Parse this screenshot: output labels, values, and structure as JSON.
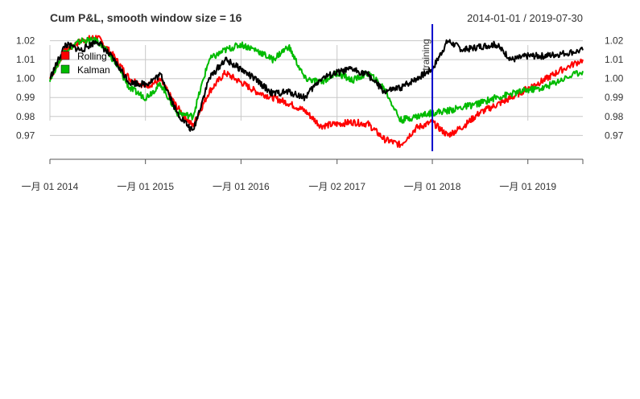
{
  "chart_data": {
    "type": "line",
    "title": "Cum P&L, smooth window size = 16",
    "date_range": "2014-01-01 / 2019-07-30",
    "x_ticks": [
      "一月 01 2014",
      "一月 01 2015",
      "一月 01 2016",
      "一月 02 2017",
      "一月 01 2018",
      "一月 01 2019"
    ],
    "x_tick_dates": [
      "2014-01-01",
      "2015-01-01",
      "2016-01-01",
      "2017-01-02",
      "2018-01-01",
      "2019-01-01"
    ],
    "xlim": [
      "2014-01-01",
      "2019-07-30"
    ],
    "y_ticks": [
      "0.97",
      "0.98",
      "0.99",
      "1.00",
      "1.01",
      "1.02"
    ],
    "y_tick_values": [
      0.97,
      0.98,
      0.99,
      1.0,
      1.01,
      1.02
    ],
    "ylim": [
      0.9625,
      1.0245
    ],
    "grid": true,
    "legend": {
      "position": "top-left",
      "entries": [
        {
          "label": "Rolling",
          "color": "#ff0000"
        },
        {
          "label": "Kalman",
          "color": "#00bb00"
        }
      ]
    },
    "event_line": {
      "date": "2018-01-01",
      "label": "training",
      "color": "#0000cc"
    },
    "series": [
      {
        "name": "Rolling",
        "color": "#ff0000",
        "x": [
          "2014-01-01",
          "2014-03-01",
          "2014-05-01",
          "2014-07-01",
          "2014-09-01",
          "2014-11-01",
          "2015-01-01",
          "2015-03-01",
          "2015-05-01",
          "2015-07-01",
          "2015-09-01",
          "2015-11-01",
          "2016-01-01",
          "2016-03-01",
          "2016-05-01",
          "2016-07-01",
          "2016-09-01",
          "2016-11-01",
          "2017-01-01",
          "2017-03-01",
          "2017-05-01",
          "2017-07-01",
          "2017-09-01",
          "2017-11-01",
          "2018-01-01",
          "2018-03-01",
          "2018-05-01",
          "2018-07-01",
          "2018-09-01",
          "2018-11-01",
          "2019-01-01",
          "2019-03-01",
          "2019-05-01",
          "2019-07-30"
        ],
        "y": [
          1.0,
          1.015,
          1.02,
          1.022,
          1.012,
          1.0,
          0.996,
          0.999,
          0.985,
          0.975,
          0.993,
          1.003,
          0.998,
          0.993,
          0.99,
          0.987,
          0.983,
          0.975,
          0.976,
          0.977,
          0.976,
          0.968,
          0.965,
          0.974,
          0.977,
          0.97,
          0.975,
          0.982,
          0.986,
          0.99,
          0.995,
          0.999,
          1.004,
          1.01
        ]
      },
      {
        "name": "Kalman",
        "color": "#00bb00",
        "x": [
          "2014-01-01",
          "2014-03-01",
          "2014-05-01",
          "2014-07-01",
          "2014-09-01",
          "2014-11-01",
          "2015-01-01",
          "2015-03-01",
          "2015-05-01",
          "2015-07-01",
          "2015-09-01",
          "2015-11-01",
          "2016-01-01",
          "2016-03-01",
          "2016-05-01",
          "2016-07-01",
          "2016-09-01",
          "2016-11-01",
          "2017-01-01",
          "2017-03-01",
          "2017-05-01",
          "2017-07-01",
          "2017-09-01",
          "2017-11-01",
          "2018-01-01",
          "2018-03-01",
          "2018-05-01",
          "2018-07-01",
          "2018-09-01",
          "2018-11-01",
          "2019-01-01",
          "2019-03-01",
          "2019-05-01",
          "2019-07-30"
        ],
        "y": [
          1.0,
          1.015,
          1.02,
          1.02,
          1.01,
          0.995,
          0.99,
          0.997,
          0.982,
          0.98,
          1.01,
          1.015,
          1.018,
          1.015,
          1.01,
          1.017,
          1.0,
          0.998,
          1.003,
          0.999,
          1.003,
          0.995,
          0.978,
          0.98,
          0.982,
          0.983,
          0.985,
          0.987,
          0.99,
          0.992,
          0.994,
          0.995,
          0.999,
          1.004
        ]
      },
      {
        "name": "",
        "color": "#000000",
        "x": [
          "2014-01-01",
          "2014-03-01",
          "2014-05-01",
          "2014-07-01",
          "2014-09-01",
          "2014-11-01",
          "2015-01-01",
          "2015-03-01",
          "2015-05-01",
          "2015-07-01",
          "2015-09-01",
          "2015-11-01",
          "2016-01-01",
          "2016-03-01",
          "2016-05-01",
          "2016-07-01",
          "2016-09-01",
          "2016-11-01",
          "2017-01-01",
          "2017-03-01",
          "2017-05-01",
          "2017-07-01",
          "2017-09-01",
          "2017-11-01",
          "2018-01-01",
          "2018-03-01",
          "2018-05-01",
          "2018-07-01",
          "2018-09-01",
          "2018-11-01",
          "2019-01-01",
          "2019-03-01",
          "2019-05-01",
          "2019-07-30"
        ],
        "y": [
          1.0,
          1.018,
          1.015,
          1.02,
          1.01,
          0.998,
          0.997,
          1.002,
          0.982,
          0.972,
          1.0,
          1.01,
          1.005,
          0.999,
          0.992,
          0.993,
          0.99,
          1.0,
          1.003,
          1.005,
          1.002,
          0.993,
          0.995,
          1.0,
          1.005,
          1.02,
          1.015,
          1.017,
          1.018,
          1.01,
          1.012,
          1.012,
          1.013,
          1.015
        ]
      }
    ]
  }
}
